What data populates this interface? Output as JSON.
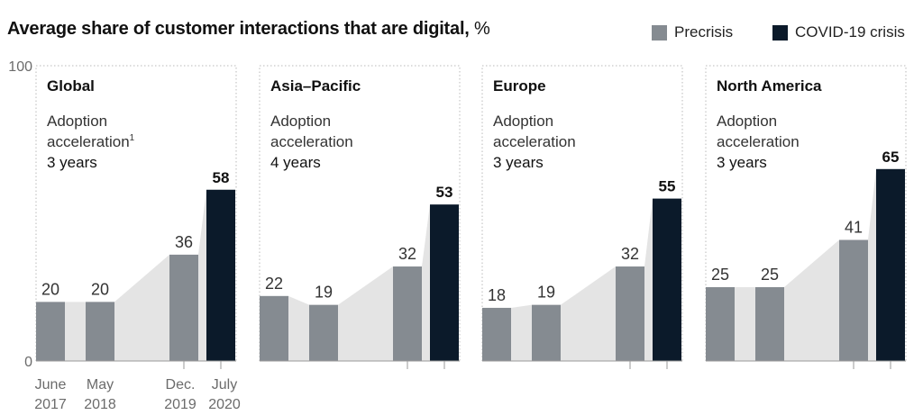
{
  "title": "Average share of customer interactions that are digital,",
  "title_unit": "%",
  "legend": [
    {
      "label": "Precrisis",
      "color": "#858b91"
    },
    {
      "label": "COVID-19 crisis",
      "color": "#0b1a2a"
    }
  ],
  "colors": {
    "precrisis": "#858b91",
    "covid": "#0b1a2a",
    "area": "#e4e4e4",
    "frame": "#b9b9b9"
  },
  "chart_data": {
    "type": "bar",
    "ylim": [
      0,
      100
    ],
    "yticks": [
      0,
      100
    ],
    "x_categories": [
      {
        "line1": "June",
        "line2": "2017"
      },
      {
        "line1": "May",
        "line2": "2018"
      },
      {
        "line1": "Dec.",
        "line2": "2019"
      },
      {
        "line1": "July",
        "line2": "2020"
      }
    ],
    "panels": [
      {
        "region": "Global",
        "acceleration_label": "Adoption",
        "acceleration_label2": "acceleration",
        "footnote": "1",
        "acceleration": "3 years",
        "values": [
          20,
          20,
          36,
          58
        ]
      },
      {
        "region": "Asia–Pacific",
        "acceleration_label": "Adoption",
        "acceleration_label2": "acceleration",
        "footnote": "",
        "acceleration": "4 years",
        "values": [
          22,
          19,
          32,
          53
        ]
      },
      {
        "region": "Europe",
        "acceleration_label": "Adoption",
        "acceleration_label2": "acceleration",
        "footnote": "",
        "acceleration": "3 years",
        "values": [
          18,
          19,
          32,
          55
        ]
      },
      {
        "region": "North America",
        "acceleration_label": "Adoption",
        "acceleration_label2": "acceleration",
        "footnote": "",
        "acceleration": "3 years",
        "values": [
          25,
          25,
          41,
          65
        ]
      }
    ]
  }
}
